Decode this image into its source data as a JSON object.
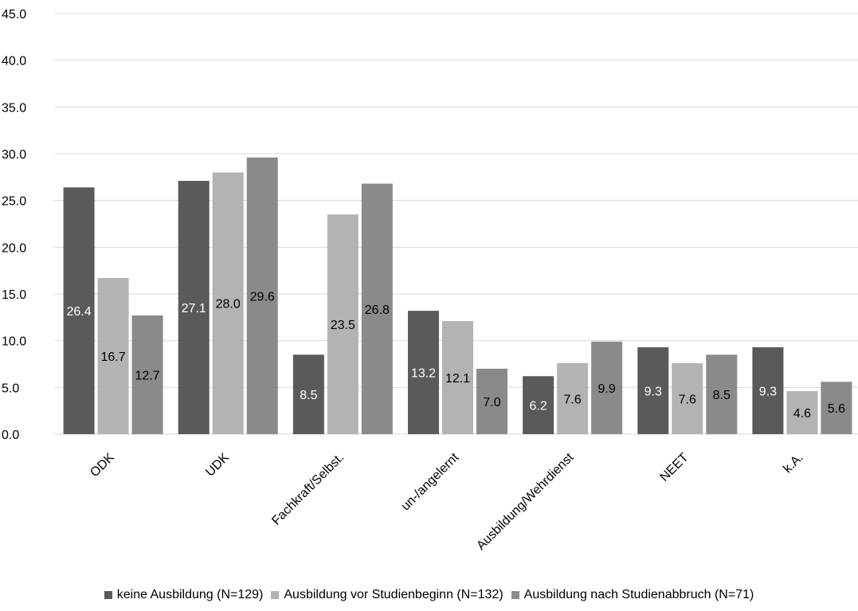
{
  "chart_data": {
    "type": "bar",
    "title": "",
    "xlabel": "",
    "ylabel": "",
    "ylim": [
      0,
      45
    ],
    "yticks": [
      "0.0",
      "5.0",
      "10.0",
      "15.0",
      "20.0",
      "25.0",
      "30.0",
      "35.0",
      "40.0",
      "45.0"
    ],
    "grid": true,
    "legend_position": "bottom",
    "categories": [
      "ODK",
      "UDK",
      "Fachkraft/Selbst.",
      "un-/angelernt",
      "Ausbildung/Wehrdienst",
      "NEET",
      "k.A."
    ],
    "series": [
      {
        "name": "keine Ausbildung (N=129)",
        "color": "#5a5a5a",
        "label_color": "#ffffff",
        "values": [
          26.4,
          27.1,
          8.5,
          13.2,
          6.2,
          9.3,
          9.3
        ],
        "labels": [
          "26.4",
          "27.1",
          "8.5",
          "13.2",
          "6.2",
          "9.3",
          "9.3"
        ]
      },
      {
        "name": "Ausbildung vor Studienbeginn (N=132)",
        "color": "#b3b3b3",
        "label_color": "#000000",
        "values": [
          16.7,
          28.0,
          23.5,
          12.1,
          7.6,
          7.6,
          4.6
        ],
        "labels": [
          "16.7",
          "28.0",
          "23.5",
          "12.1",
          "7.6",
          "7.6",
          "4.6"
        ]
      },
      {
        "name": "Ausbildung nach Studienabbruch (N=71)",
        "color": "#8a8a8a",
        "label_color": "#000000",
        "values": [
          12.7,
          29.6,
          26.8,
          7.0,
          9.9,
          8.5,
          5.6
        ],
        "labels": [
          "12.7",
          "29.6",
          "26.8",
          "7.0",
          "9.9",
          "8.5",
          "5.6"
        ]
      }
    ]
  }
}
